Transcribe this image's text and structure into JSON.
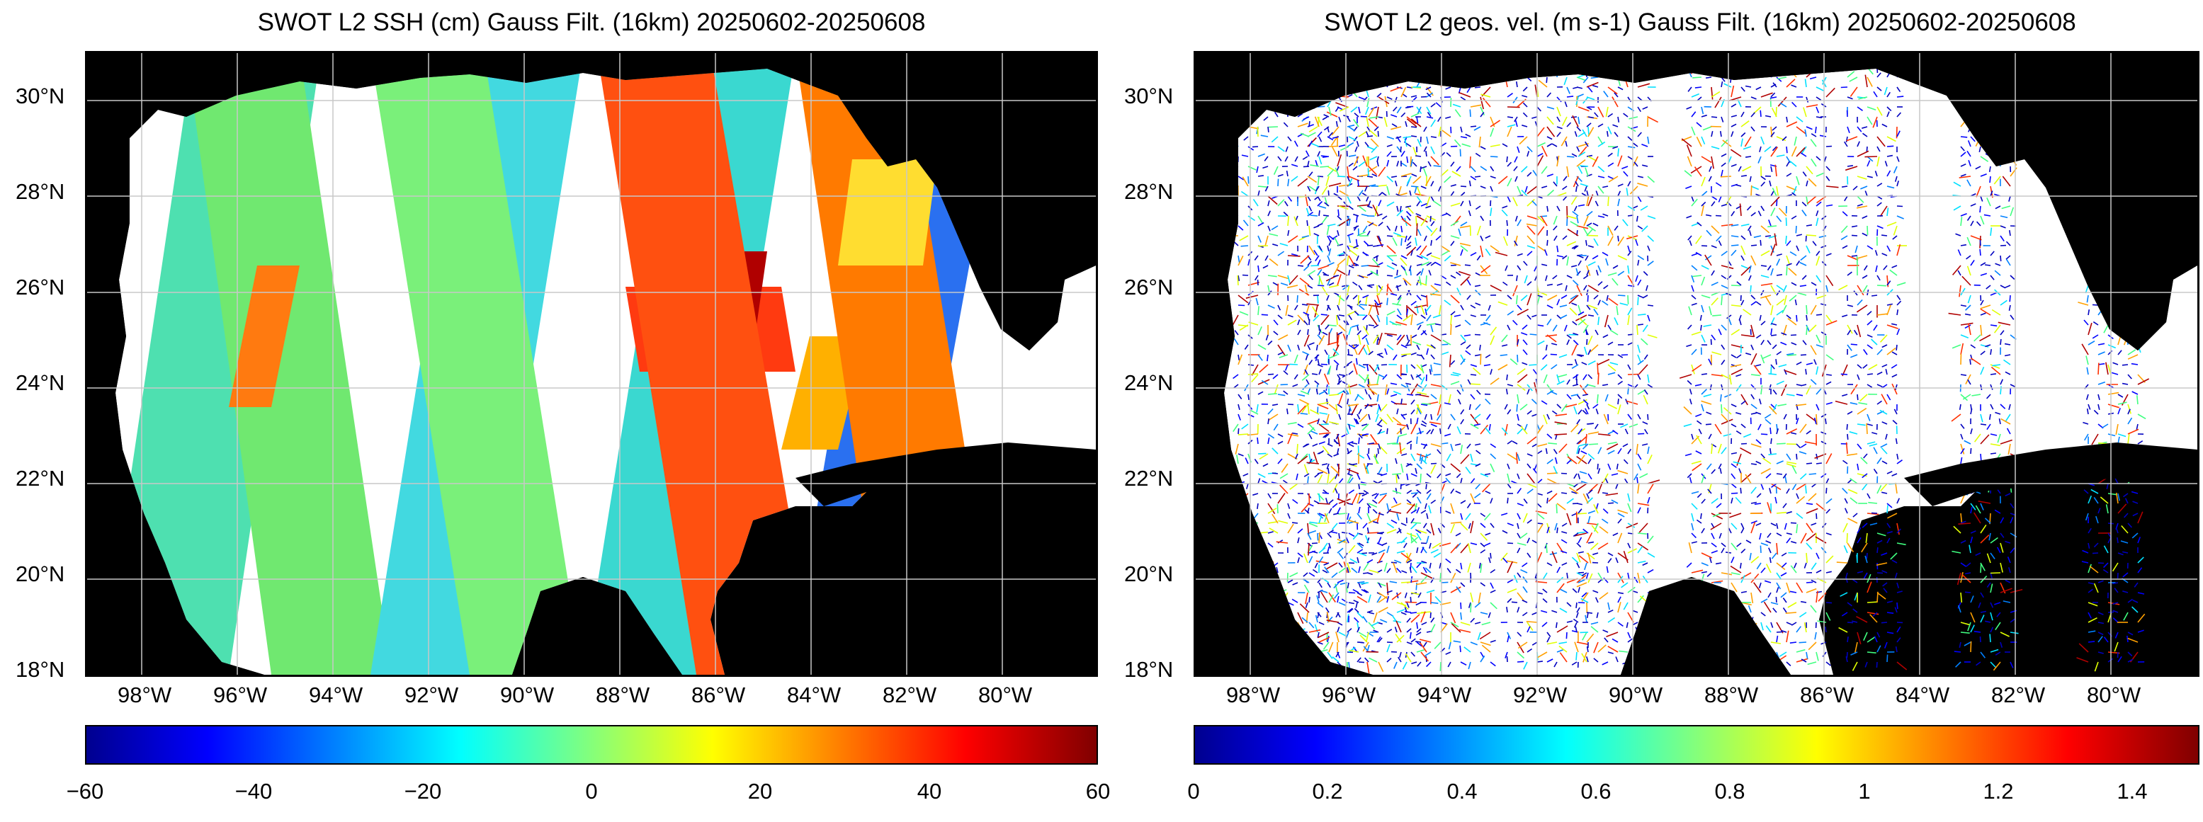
{
  "panels": [
    {
      "title": "SWOT L2 SSH (cm) Gauss Filt. (16km) 20250602-20250608",
      "lat_labels": [
        "30°N",
        "28°N",
        "26°N",
        "24°N",
        "22°N",
        "20°N",
        "18°N"
      ],
      "lon_labels": [
        "98°W",
        "96°W",
        "94°W",
        "92°W",
        "90°W",
        "88°W",
        "86°W",
        "84°W",
        "82°W",
        "80°W"
      ],
      "colorbar": {
        "colormap": "jet",
        "ticks": [
          "−60",
          "−40",
          "−20",
          "0",
          "20",
          "40",
          "60"
        ],
        "range": [
          -60,
          60
        ]
      }
    },
    {
      "title": "SWOT L2 geos. vel. (m s-1) Gauss Filt. (16km) 20250602-20250608",
      "lat_labels": [
        "30°N",
        "28°N",
        "26°N",
        "24°N",
        "22°N",
        "20°N",
        "18°N"
      ],
      "lon_labels": [
        "98°W",
        "96°W",
        "94°W",
        "92°W",
        "90°W",
        "88°W",
        "86°W",
        "84°W",
        "82°W",
        "80°W"
      ],
      "colorbar": {
        "colormap": "jet",
        "ticks": [
          "0",
          "0.2",
          "0.4",
          "0.6",
          "0.8",
          "1",
          "1.2",
          "1.4"
        ],
        "range": [
          0,
          1.5
        ]
      }
    }
  ],
  "colors": {
    "land": "#000000",
    "ocean_gap": "#ffffff",
    "grid": "#c8c8c8"
  }
}
